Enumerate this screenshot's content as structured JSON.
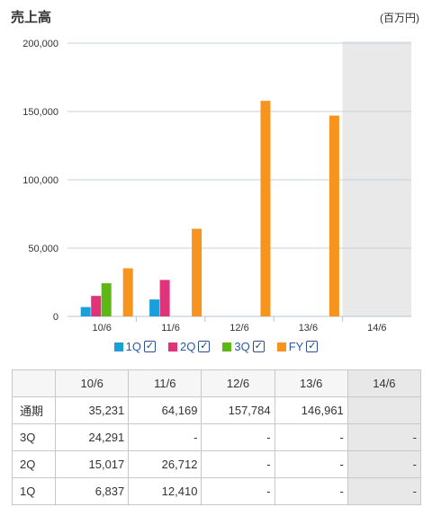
{
  "header": {
    "title": "売上高",
    "unit": "(百万円)"
  },
  "colors": {
    "1Q": "#1a9fd8",
    "2Q": "#e0337a",
    "3Q": "#5eb814",
    "FY": "#f7941d",
    "future_band": "#e9e9e9",
    "grid": "#c5d3dc"
  },
  "legend": [
    {
      "key": "1Q",
      "label": "1Q",
      "checked": true
    },
    {
      "key": "2Q",
      "label": "2Q",
      "checked": true
    },
    {
      "key": "3Q",
      "label": "3Q",
      "checked": true
    },
    {
      "key": "FY",
      "label": "FY",
      "checked": true
    }
  ],
  "chart_data": {
    "type": "bar",
    "categories": [
      "10/6",
      "11/6",
      "12/6",
      "13/6",
      "14/6"
    ],
    "series": [
      {
        "name": "1Q",
        "values": [
          6837,
          12410,
          null,
          null,
          null
        ]
      },
      {
        "name": "2Q",
        "values": [
          15017,
          26712,
          null,
          null,
          null
        ]
      },
      {
        "name": "3Q",
        "values": [
          24291,
          null,
          null,
          null,
          null
        ]
      },
      {
        "name": "FY",
        "values": [
          35231,
          64169,
          157784,
          146961,
          null
        ]
      }
    ],
    "yticks": [
      "0",
      "50,000",
      "100,000",
      "150,000",
      "200,000"
    ],
    "ylim": [
      0,
      200000
    ],
    "shaded_category": "14/6",
    "grid": true,
    "legend_position": "bottom"
  },
  "table": {
    "columns": [
      "10/6",
      "11/6",
      "12/6",
      "13/6",
      "14/6"
    ],
    "rows": [
      {
        "label": "通期",
        "cells": [
          "35,231",
          "64,169",
          "157,784",
          "146,961",
          ""
        ]
      },
      {
        "label": "3Q",
        "cells": [
          "24,291",
          "-",
          "-",
          "-",
          "-"
        ]
      },
      {
        "label": "2Q",
        "cells": [
          "15,017",
          "26,712",
          "-",
          "-",
          "-"
        ]
      },
      {
        "label": "1Q",
        "cells": [
          "6,837",
          "12,410",
          "-",
          "-",
          "-"
        ]
      }
    ]
  }
}
